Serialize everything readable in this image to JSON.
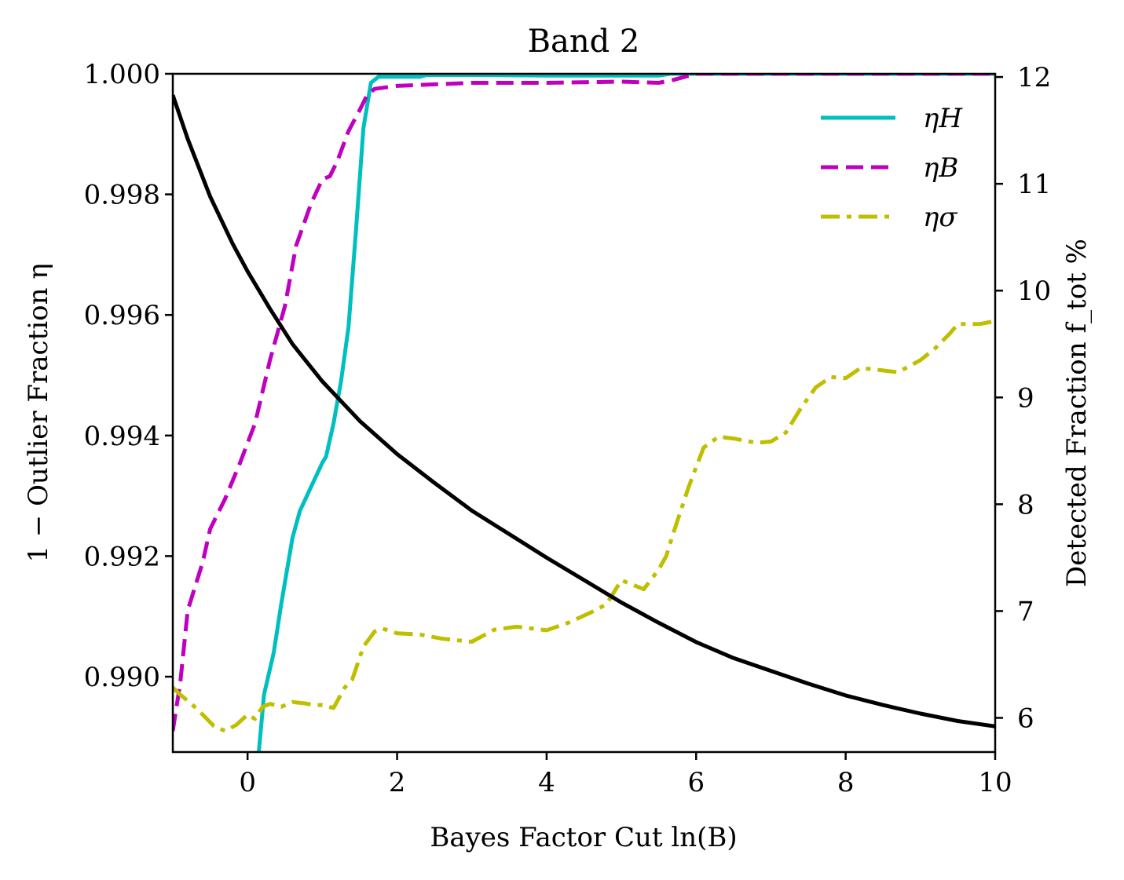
{
  "chart_data": {
    "type": "line",
    "title": "Band 2",
    "xlabel": "Bayes Factor Cut  ln(B)",
    "ylabel_left": "1 − Outlier Fraction η",
    "ylabel_right": "Detected Fraction f_tot %",
    "xlim": [
      -1,
      10
    ],
    "ylim_left": [
      0.98875,
      1.0
    ],
    "ylim_right": [
      5.68,
      12.03
    ],
    "xticks": [
      0,
      2,
      4,
      6,
      8,
      10
    ],
    "xtick_labels": [
      "0",
      "2",
      "4",
      "6",
      "8",
      "10"
    ],
    "yticks_left": [
      0.99,
      0.992,
      0.994,
      0.996,
      0.998,
      1.0
    ],
    "ytick_labels_left": [
      "0.990",
      "0.992",
      "0.994",
      "0.996",
      "0.998",
      "1.000"
    ],
    "yticks_right": [
      6,
      7,
      8,
      9,
      10,
      11,
      12
    ],
    "ytick_labels_right": [
      "6",
      "7",
      "8",
      "9",
      "10",
      "11",
      "12"
    ],
    "legend_position": "top-right",
    "series": [
      {
        "name": "η_H",
        "legend_label": "ηH",
        "axis": "left",
        "color": "#00bfbf",
        "style": "solid",
        "x": [
          0.15,
          0.22,
          0.35,
          0.45,
          0.6,
          0.7,
          0.85,
          1.0,
          1.05,
          1.15,
          1.25,
          1.35,
          1.45,
          1.55,
          1.65,
          1.75,
          2.0,
          2.3,
          2.4,
          3.0,
          4.0,
          5.0,
          5.5,
          5.65,
          6.0,
          7.0,
          8.0,
          9.0,
          10.0
        ],
        "values": [
          0.98875,
          0.9897,
          0.9904,
          0.9912,
          0.9923,
          0.99275,
          0.99315,
          0.99355,
          0.99365,
          0.9942,
          0.9949,
          0.9958,
          0.9974,
          0.9991,
          0.99985,
          0.99995,
          0.99995,
          0.99995,
          0.99998,
          0.99998,
          0.99997,
          0.99997,
          0.99997,
          1.0,
          1.0,
          1.0,
          1.0,
          1.0,
          1.0
        ]
      },
      {
        "name": "η_B",
        "legend_label": "ηB",
        "axis": "left",
        "color": "#bf00bf",
        "style": "dashed",
        "x": [
          -1.0,
          -0.9,
          -0.8,
          -0.6,
          -0.5,
          -0.3,
          -0.1,
          0.1,
          0.3,
          0.5,
          0.65,
          0.85,
          1.0,
          1.1,
          1.2,
          1.35,
          1.5,
          1.6,
          1.7,
          2.0,
          3.0,
          4.0,
          5.0,
          5.5,
          5.7,
          6.0,
          7.0,
          8.0,
          9.0,
          10.0
        ],
        "values": [
          0.9891,
          0.9899,
          0.9911,
          0.9919,
          0.99245,
          0.99295,
          0.99355,
          0.9942,
          0.99525,
          0.99615,
          0.99715,
          0.99785,
          0.99825,
          0.9983,
          0.99855,
          0.99905,
          0.9994,
          0.99965,
          0.99975,
          0.9998,
          0.99985,
          0.99985,
          0.99987,
          0.99985,
          0.9999,
          1.0,
          1.0,
          1.0,
          1.0,
          1.0
        ]
      },
      {
        "name": "η_σ",
        "legend_label": "ησ",
        "axis": "left",
        "color": "#bfbf00",
        "style": "dashdot",
        "x": [
          -1.0,
          -0.9,
          -0.75,
          -0.6,
          -0.45,
          -0.3,
          -0.15,
          0.0,
          0.1,
          0.2,
          0.3,
          0.45,
          0.6,
          0.75,
          0.9,
          1.0,
          1.15,
          1.3,
          1.4,
          1.55,
          1.7,
          1.8,
          2.0,
          2.3,
          2.6,
          3.0,
          3.3,
          3.6,
          4.0,
          4.3,
          4.6,
          4.8,
          5.0,
          5.3,
          5.5,
          5.6,
          5.7,
          5.9,
          6.1,
          6.3,
          6.5,
          6.8,
          7.0,
          7.2,
          7.4,
          7.6,
          7.8,
          8.0,
          8.2,
          8.5,
          8.7,
          9.0,
          9.2,
          9.4,
          9.5,
          9.8,
          10.0
        ],
        "values": [
          0.98982,
          0.9897,
          0.98955,
          0.98937,
          0.98918,
          0.9891,
          0.9892,
          0.98937,
          0.9893,
          0.9895,
          0.98955,
          0.9895,
          0.98958,
          0.98956,
          0.98953,
          0.98953,
          0.98948,
          0.98982,
          0.98995,
          0.9905,
          0.99075,
          0.9908,
          0.99072,
          0.9907,
          0.99063,
          0.99058,
          0.99078,
          0.99083,
          0.99077,
          0.9909,
          0.99107,
          0.9912,
          0.9916,
          0.99145,
          0.99178,
          0.992,
          0.9924,
          0.99315,
          0.9938,
          0.99398,
          0.99395,
          0.99388,
          0.9939,
          0.99405,
          0.99445,
          0.9948,
          0.99497,
          0.99495,
          0.99512,
          0.99508,
          0.99505,
          0.99525,
          0.99545,
          0.9957,
          0.99585,
          0.99585,
          0.9959
        ]
      },
      {
        "name": "f_tot",
        "legend_label": "",
        "axis": "right",
        "color": "#000000",
        "style": "solid",
        "x": [
          -1.0,
          -0.8,
          -0.5,
          -0.2,
          0.0,
          0.3,
          0.6,
          1.0,
          1.5,
          2.0,
          2.5,
          3.0,
          3.5,
          4.0,
          4.5,
          5.0,
          5.5,
          6.0,
          6.5,
          7.0,
          7.5,
          8.0,
          8.5,
          9.0,
          9.5,
          10.0
        ],
        "values": [
          11.83,
          11.42,
          10.88,
          10.44,
          10.18,
          9.83,
          9.5,
          9.15,
          8.78,
          8.47,
          8.2,
          7.94,
          7.72,
          7.5,
          7.29,
          7.08,
          6.89,
          6.71,
          6.56,
          6.44,
          6.32,
          6.21,
          6.12,
          6.04,
          5.97,
          5.92
        ]
      }
    ]
  }
}
